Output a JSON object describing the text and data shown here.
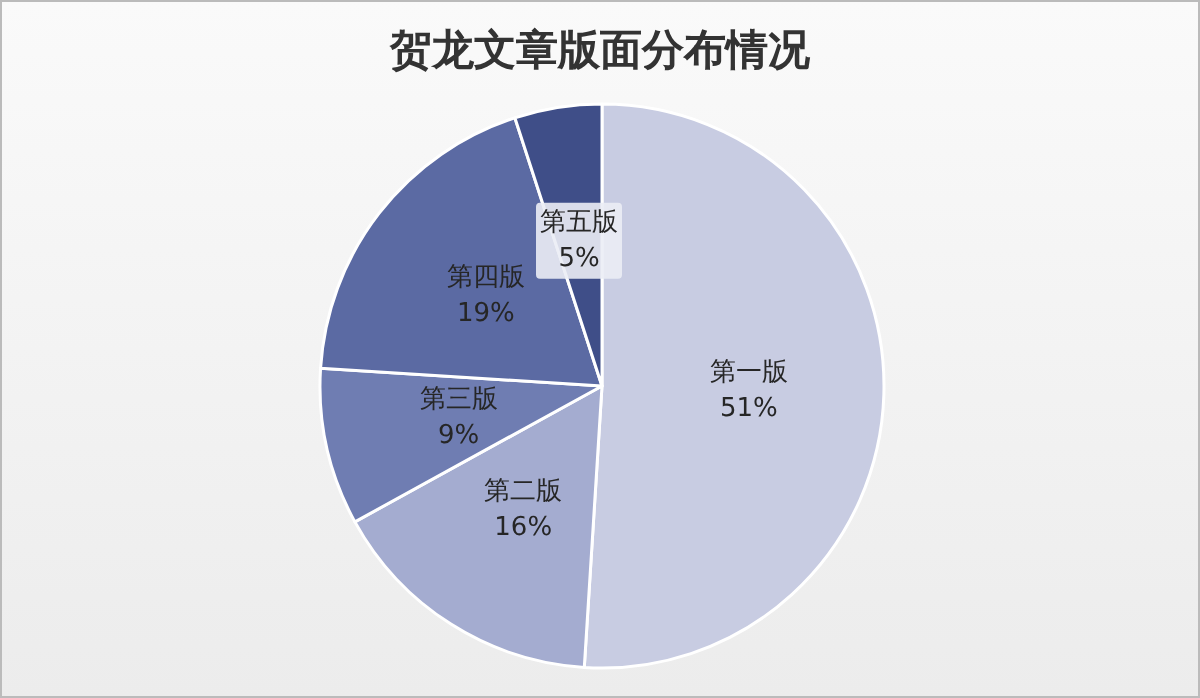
{
  "chart_data": {
    "type": "pie",
    "title": "贺龙文章版面分布情况",
    "categories": [
      "第一版",
      "第二版",
      "第三版",
      "第四版",
      "第五版"
    ],
    "values": [
      51,
      16,
      9,
      19,
      5
    ],
    "value_labels": [
      "51%",
      "16%",
      "9%",
      "19%",
      "5%"
    ],
    "colors": [
      "#c8cce2",
      "#a4acd0",
      "#6f7db2",
      "#5b6aa3",
      "#3f4e88"
    ],
    "legend": false
  }
}
